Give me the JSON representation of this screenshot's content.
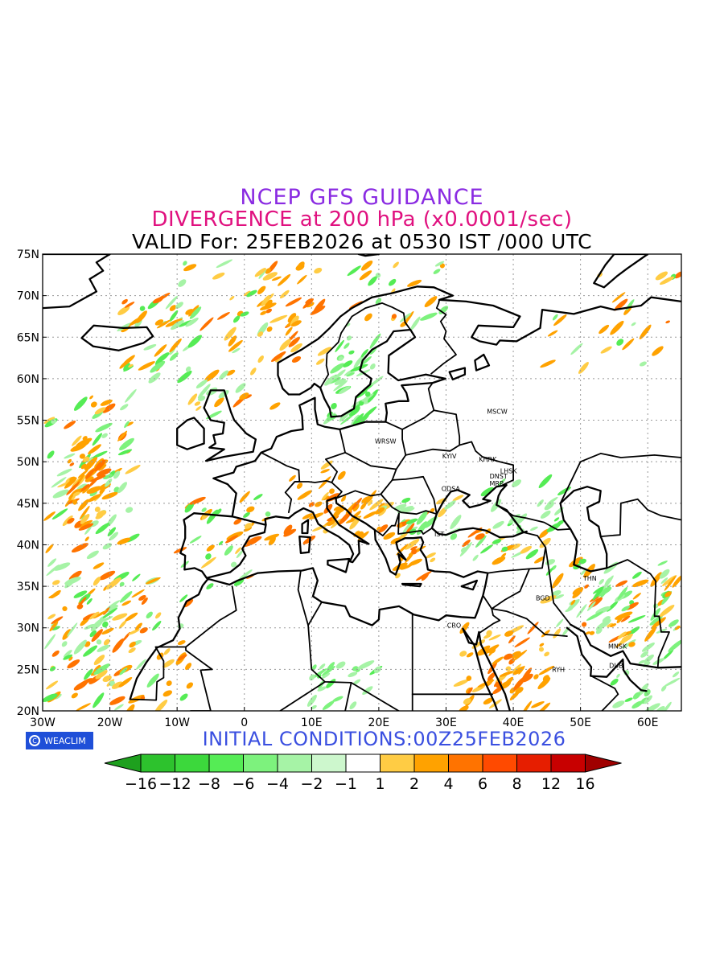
{
  "header": {
    "line1": "NCEP GFS GUIDANCE",
    "line2": "DIVERGENCE at 200 hPa (x0.0001/sec)",
    "line3": "VALID For: 25FEB2026 at 0530 IST /000 UTC"
  },
  "map": {
    "lon_range": [
      -30,
      65
    ],
    "lat_range": [
      20,
      75
    ],
    "lon_ticks": [
      "30W",
      "20W",
      "10W",
      "0",
      "10E",
      "20E",
      "30E",
      "40E",
      "50E",
      "60E"
    ],
    "lat_ticks": [
      "75N",
      "70N",
      "65N",
      "60N",
      "55N",
      "50N",
      "45N",
      "40N",
      "35N",
      "30N",
      "25N",
      "20N"
    ],
    "city_labels": [
      {
        "text": "MSCW",
        "lon": 37.6,
        "lat": 55.8
      },
      {
        "text": "WRSW",
        "lon": 21.0,
        "lat": 52.2
      },
      {
        "text": "KYIV",
        "lon": 30.5,
        "lat": 50.4
      },
      {
        "text": "KHRK",
        "lon": 36.2,
        "lat": 50.0
      },
      {
        "text": "LHSK",
        "lon": 39.3,
        "lat": 48.6
      },
      {
        "text": "DNST",
        "lon": 37.8,
        "lat": 48.0
      },
      {
        "text": "MRP",
        "lon": 37.5,
        "lat": 47.1
      },
      {
        "text": "ODSA",
        "lon": 30.7,
        "lat": 46.5
      },
      {
        "text": "IST",
        "lon": 29.0,
        "lat": 41.0
      },
      {
        "text": "THN",
        "lon": 51.4,
        "lat": 35.7
      },
      {
        "text": "BGD",
        "lon": 44.4,
        "lat": 33.3
      },
      {
        "text": "CRO",
        "lon": 31.2,
        "lat": 30.0
      },
      {
        "text": "MNSK",
        "lon": 55.5,
        "lat": 27.5
      },
      {
        "text": "RYH",
        "lon": 46.7,
        "lat": 24.7
      },
      {
        "text": "DUB",
        "lon": 55.3,
        "lat": 25.2
      }
    ]
  },
  "logo": {
    "text": "WEACLIM",
    "icon": "copyright-circle-icon"
  },
  "initial": "INITIAL CONDITIONS:00Z25FEB2026",
  "colorbar": {
    "labels": [
      "-16",
      "-12",
      "-8",
      "-6",
      "-4",
      "-2",
      "-1",
      "1",
      "2",
      "4",
      "6",
      "8",
      "12",
      "16"
    ],
    "colors": [
      "#1ea01e",
      "#2dc22d",
      "#3cd83c",
      "#55ec55",
      "#7df27d",
      "#a6f3a6",
      "#cdf7cd",
      "#ffffff",
      "#ffcc44",
      "#ffa200",
      "#ff7300",
      "#ff4a00",
      "#e61e00",
      "#c80000",
      "#a00000"
    ]
  }
}
